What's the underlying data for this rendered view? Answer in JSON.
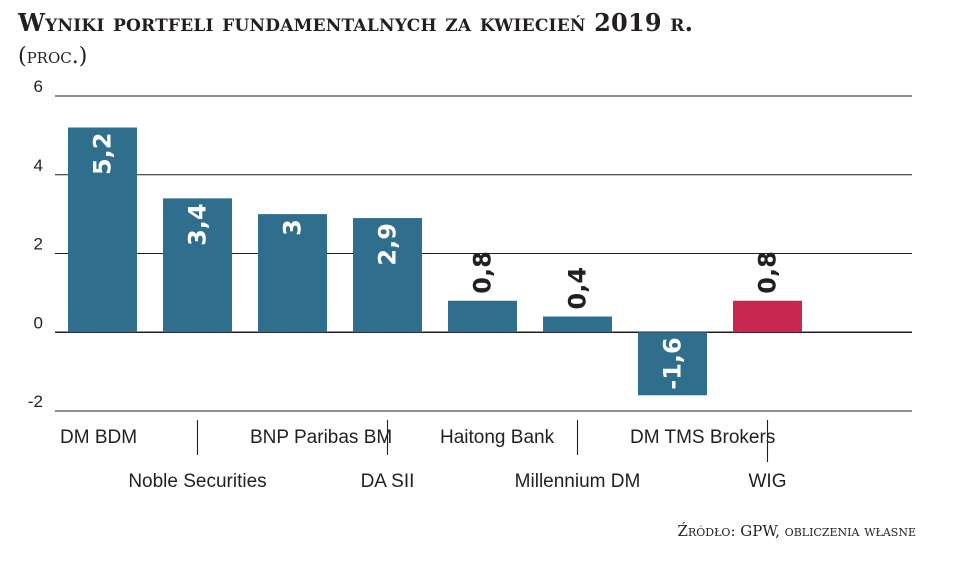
{
  "title": "Wyniki portfeli fundamentalnych za kwiecień 2019 r.",
  "subtitle": "(proc.)",
  "source": "Źródło: GPW, obliczenia własne",
  "colors": {
    "bar": "#2f6e8c",
    "highlight": "#c8284f",
    "grid": "#231f20"
  },
  "chart_data": {
    "type": "bar",
    "title": "Wyniki portfeli fundamentalnych za kwiecień 2019 r.",
    "ylabel": "(proc.)",
    "xlabel": "",
    "ylim": [
      -2,
      6
    ],
    "yticks": [
      "6",
      "4",
      "2",
      "0",
      "-2"
    ],
    "grid": true,
    "categories": [
      "DM BDM",
      "Noble Securities",
      "BNP Paribas BM",
      "DA SII",
      "Haitong Bank",
      "Millennium DM",
      "DM TMS Brokers",
      "WIG"
    ],
    "values": [
      5.2,
      3.4,
      3,
      2.9,
      0.8,
      0.4,
      -1.6,
      0.8
    ],
    "value_labels": [
      "5,2",
      "3,4",
      "3",
      "2,9",
      "0,8",
      "0,4",
      "-1,6",
      "0,8"
    ],
    "highlight": [
      "WIG"
    ]
  }
}
